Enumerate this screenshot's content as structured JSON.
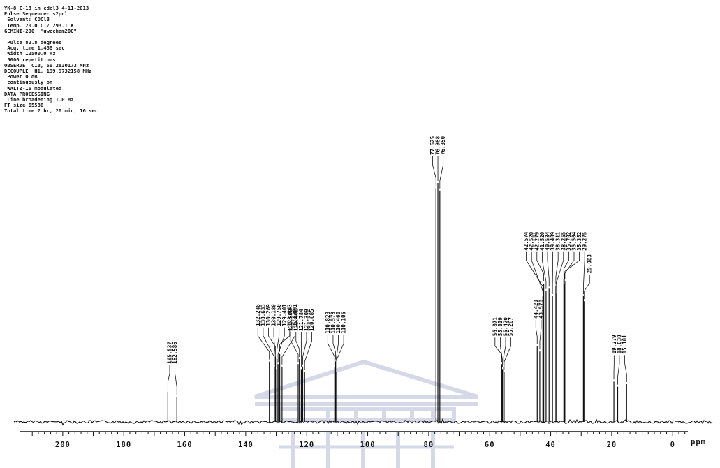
{
  "header": {
    "lines": [
      "YK-8 C-13 in cdcl3 4-11-2013",
      "Pulse Sequence: s2pul",
      " Solvent: CDCl3",
      " Temp. 20.0 C / 293.1 K",
      "GEMINI-200  \"uwcchem200\"",
      "",
      " Pulse 82.8 degrees",
      " Acq. time 1.438 sec",
      " Width 12500.0 Hz",
      " 5000 repetitions",
      "OBSERVE  C13, 50.2830173 MHz",
      "DECOUPLE  H1, 199.9732158 MHz",
      " Power 0 dB",
      " continuously on",
      " WALTZ-16 modulated",
      "DATA PROCESSING",
      " Line broadening 1.0 Hz",
      "FT size 65536",
      "Total time 2 hr, 20 min, 16 sec"
    ]
  },
  "chart_data": {
    "type": "line",
    "title": "",
    "xlabel": "ppm",
    "ylabel": "",
    "x_direction": "reversed",
    "xlim": [
      216,
      -13
    ],
    "ylim": [
      0,
      1
    ],
    "x_ticks": [
      200,
      180,
      160,
      140,
      120,
      100,
      80,
      60,
      40,
      20,
      0
    ],
    "x_unit_label": "ppm",
    "grid": false,
    "peak_groups": [
      {
        "labels": [
          "165.537",
          "162.586"
        ],
        "shifts": [
          165.537,
          162.586
        ],
        "heights": [
          0.12,
          0.1
        ]
      },
      {
        "labels": [
          "132.248",
          "130.633",
          "130.269",
          "130.180",
          "129.750",
          "129.401",
          "128.843",
          "128.091"
        ],
        "shifts": [
          132.248,
          130.633,
          130.269,
          130.18,
          129.75,
          129.401,
          128.843,
          128.091
        ],
        "heights": [
          0.24,
          0.22,
          0.26,
          0.21,
          0.25,
          0.23,
          0.27,
          0.22
        ]
      },
      {
        "labels": [
          "122.800",
          "122.402",
          "121.784",
          "121.309",
          "120.685"
        ],
        "shifts": [
          122.8,
          122.402,
          121.784,
          121.309,
          120.685
        ],
        "heights": [
          0.23,
          0.25,
          0.21,
          0.22,
          0.2
        ]
      },
      {
        "labels": [
          "110.823",
          "110.573",
          "110.460",
          "110.105"
        ],
        "shifts": [
          110.823,
          110.573,
          110.46,
          110.105
        ],
        "heights": [
          0.22,
          0.24,
          0.2,
          0.21
        ]
      },
      {
        "labels": [
          "77.625",
          "76.988",
          "76.350"
        ],
        "shifts": [
          77.625,
          76.988,
          76.35
        ],
        "heights": [
          0.93,
          0.95,
          0.92
        ]
      },
      {
        "labels": [
          "56.071",
          "55.839",
          "55.420",
          "55.267"
        ],
        "shifts": [
          56.071,
          55.839,
          55.42,
          55.267
        ],
        "heights": [
          0.23,
          0.21,
          0.22,
          0.2
        ]
      },
      {
        "labels": [
          "44.420",
          "43.578"
        ],
        "shifts": [
          44.42,
          43.578
        ],
        "heights": [
          0.3,
          0.28
        ]
      },
      {
        "labels": [
          "42.574",
          "42.520",
          "42.279",
          "41.520",
          "40.534",
          "39.409",
          "38.311",
          "38.255",
          "35.702",
          "35.504",
          "35.352",
          "29.275"
        ],
        "shifts": [
          42.574,
          42.52,
          42.279,
          41.52,
          40.534,
          39.409,
          38.311,
          38.255,
          35.702,
          35.504,
          35.352,
          29.275
        ],
        "heights": [
          0.5,
          0.48,
          0.55,
          0.52,
          0.53,
          0.5,
          0.54,
          0.51,
          0.57,
          0.55,
          0.56,
          0.5
        ]
      },
      {
        "labels": [
          "29.083"
        ],
        "shifts": [
          29.083
        ],
        "heights": [
          0.48
        ]
      },
      {
        "labels": [
          "19.279",
          "18.030",
          "15.101"
        ],
        "shifts": [
          19.279,
          18.03,
          15.101
        ],
        "heights": [
          0.16,
          0.14,
          0.15
        ]
      }
    ]
  }
}
